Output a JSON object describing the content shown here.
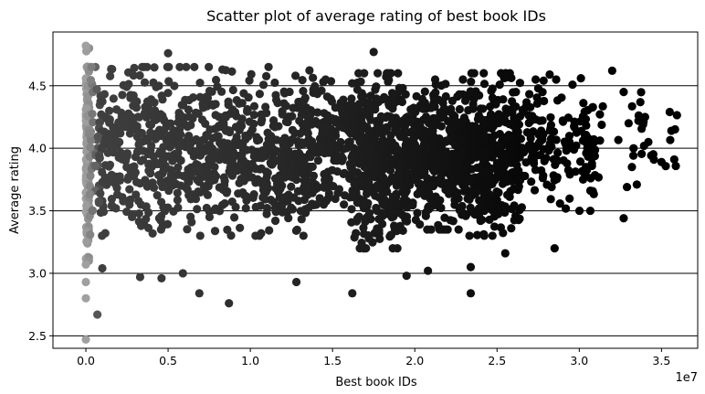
{
  "chart_data": {
    "type": "scatter",
    "title": "Scatter plot of average rating of best book IDs",
    "xlabel": "Best book IDs",
    "ylabel": "Average rating",
    "x_offset_label": "1e7",
    "x_scale": 10000000,
    "xlim": [
      -0.2,
      3.72
    ],
    "ylim": [
      2.4,
      4.93
    ],
    "xticks": [
      0.0,
      0.5,
      1.0,
      1.5,
      2.0,
      2.5,
      3.0,
      3.5
    ],
    "xtick_labels": [
      "0.0",
      "0.5",
      "1.0",
      "1.5",
      "2.0",
      "2.5",
      "3.0",
      "3.5"
    ],
    "yticks": [
      2.5,
      3.0,
      3.5,
      4.0,
      4.5
    ],
    "ytick_labels": [
      "2.5",
      "3.0",
      "3.5",
      "4.0",
      "4.5"
    ],
    "grid": "horizontal",
    "color_map": "grey gradient: light grey at low book IDs to black at high book IDs",
    "color_start": "#a0a0a0",
    "color_end": "#000000",
    "point_estimate_note": "dense overplotted cloud; x in units of 1e7",
    "clusters": [
      {
        "x_range": [
          0.0,
          0.02
        ],
        "y_range": [
          3.1,
          4.8
        ],
        "n": 180
      },
      {
        "x_range": [
          0.02,
          1.4
        ],
        "y_range": [
          3.3,
          4.65
        ],
        "n": 900
      },
      {
        "x_range": [
          1.4,
          1.6
        ],
        "y_range": [
          3.55,
          4.55
        ],
        "n": 120
      },
      {
        "x_range": [
          1.6,
          1.95
        ],
        "y_range": [
          3.2,
          4.6
        ],
        "n": 450
      },
      {
        "x_range": [
          1.95,
          2.3
        ],
        "y_range": [
          3.35,
          4.55
        ],
        "n": 350
      },
      {
        "x_range": [
          2.3,
          2.65
        ],
        "y_range": [
          3.3,
          4.6
        ],
        "n": 380
      },
      {
        "x_range": [
          2.65,
          3.1
        ],
        "y_range": [
          3.5,
          4.55
        ],
        "n": 160
      },
      {
        "x_range": [
          3.1,
          3.6
        ],
        "y_range": [
          3.7,
          4.45
        ],
        "n": 25
      }
    ],
    "points": [
      {
        "x": 0.0,
        "y": 4.82
      },
      {
        "x": 0.0,
        "y": 2.47
      },
      {
        "x": 0.0,
        "y": 2.8
      },
      {
        "x": 0.0,
        "y": 2.93
      },
      {
        "x": 0.0,
        "y": 3.07
      },
      {
        "x": 0.07,
        "y": 2.67
      },
      {
        "x": 0.1,
        "y": 3.04
      },
      {
        "x": 0.33,
        "y": 2.97
      },
      {
        "x": 0.46,
        "y": 2.96
      },
      {
        "x": 0.5,
        "y": 4.76
      },
      {
        "x": 0.59,
        "y": 3.0
      },
      {
        "x": 0.69,
        "y": 2.84
      },
      {
        "x": 0.87,
        "y": 2.76
      },
      {
        "x": 1.28,
        "y": 2.93
      },
      {
        "x": 1.62,
        "y": 2.84
      },
      {
        "x": 1.75,
        "y": 4.77
      },
      {
        "x": 1.95,
        "y": 2.98
      },
      {
        "x": 2.08,
        "y": 3.02
      },
      {
        "x": 2.34,
        "y": 2.84
      },
      {
        "x": 2.34,
        "y": 3.05
      },
      {
        "x": 2.55,
        "y": 3.16
      },
      {
        "x": 2.85,
        "y": 3.2
      },
      {
        "x": 2.82,
        "y": 4.59
      },
      {
        "x": 3.01,
        "y": 4.56
      },
      {
        "x": 3.2,
        "y": 4.62
      },
      {
        "x": 3.27,
        "y": 4.45
      },
      {
        "x": 3.27,
        "y": 3.44
      },
      {
        "x": 3.29,
        "y": 3.69
      },
      {
        "x": 3.32,
        "y": 3.85
      },
      {
        "x": 3.35,
        "y": 3.71
      },
      {
        "x": 3.4,
        "y": 4.25
      },
      {
        "x": 3.42,
        "y": 4.05
      },
      {
        "x": 3.5,
        "y": 3.89
      },
      {
        "x": 3.55,
        "y": 4.29
      },
      {
        "x": 3.56,
        "y": 4.14
      },
      {
        "x": 3.33,
        "y": 4.0
      },
      {
        "x": 3.3,
        "y": 4.2
      },
      {
        "x": 3.36,
        "y": 4.22
      }
    ]
  }
}
